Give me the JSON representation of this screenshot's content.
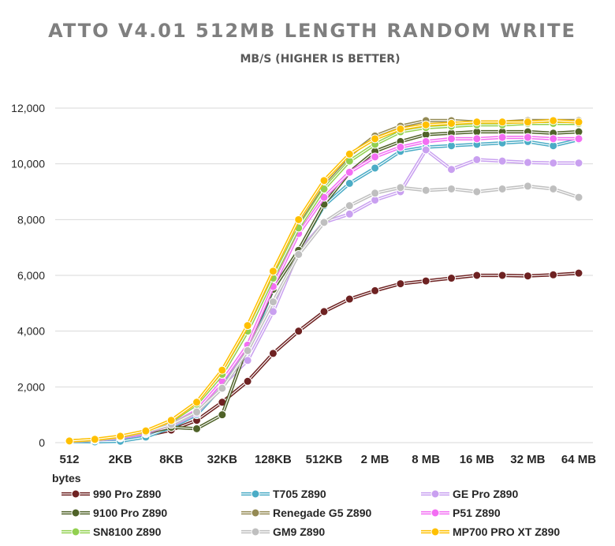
{
  "chart_data": {
    "type": "line",
    "title": "ATTO V4.01 512MB LENGTH RANDOM WRITE",
    "subtitle": "MB/S (HIGHER IS BETTER)",
    "xlabel": "bytes",
    "ylabel": "",
    "ylim": [
      0,
      12000
    ],
    "y_ticks": [
      "0",
      "2,000",
      "4,000",
      "6,000",
      "8,000",
      "10,000",
      "12,000"
    ],
    "y_tick_values": [
      0,
      2000,
      4000,
      6000,
      8000,
      10000,
      12000
    ],
    "x_tick_labels": [
      "512",
      "2KB",
      "8KB",
      "32KB",
      "128KB",
      "512KB",
      "2 MB",
      "8 MB",
      "16 MB",
      "32 MB",
      "64 MB"
    ],
    "x_tick_positions": [
      0,
      2,
      4,
      6,
      8,
      10,
      12,
      14,
      16,
      18,
      20
    ],
    "x": [
      0,
      1,
      2,
      3,
      4,
      5,
      6,
      7,
      8,
      9,
      10,
      11,
      12,
      13,
      14,
      15,
      16,
      17,
      18,
      19,
      20
    ],
    "grid": true,
    "legend_position": "bottom",
    "series": [
      {
        "name": "990 Pro Z890",
        "color": "#6e2222",
        "values": [
          40,
          80,
          150,
          250,
          450,
          800,
          1450,
          2200,
          3200,
          4000,
          4700,
          5150,
          5450,
          5700,
          5800,
          5900,
          6000,
          6000,
          5980,
          6020,
          6080
        ]
      },
      {
        "name": "T705 Z890",
        "color": "#4bacc6",
        "values": [
          40,
          30,
          50,
          200,
          550,
          1000,
          2000,
          3300,
          5500,
          6900,
          8500,
          9300,
          9850,
          10450,
          10600,
          10650,
          10700,
          10750,
          10800,
          10650,
          10870
        ]
      },
      {
        "name": "GE Pro Z890",
        "color": "#c9a0f0",
        "values": [
          50,
          90,
          170,
          320,
          600,
          1050,
          2050,
          2950,
          4700,
          6850,
          7900,
          8200,
          8700,
          9000,
          10500,
          9800,
          10150,
          10100,
          10050,
          10030,
          10030
        ]
      },
      {
        "name": "9100 Pro Z890",
        "color": "#4f6228",
        "values": [
          50,
          100,
          200,
          350,
          550,
          500,
          1000,
          3500,
          5500,
          6900,
          8550,
          9700,
          10450,
          10800,
          11050,
          11100,
          11150,
          11150,
          11150,
          11100,
          11150
        ]
      },
      {
        "name": "Renegade G5 Z890",
        "color": "#948a54",
        "values": [
          60,
          110,
          220,
          400,
          780,
          1400,
          2500,
          4100,
          6000,
          7900,
          9300,
          10300,
          11000,
          11350,
          11550,
          11550,
          11500,
          11500,
          11550,
          11550,
          11550
        ]
      },
      {
        "name": "P51 Z890",
        "color": "#f36ef3",
        "values": [
          50,
          100,
          190,
          350,
          650,
          1150,
          2200,
          3500,
          5600,
          7500,
          8800,
          9700,
          10250,
          10600,
          10800,
          10900,
          10900,
          10950,
          10950,
          10900,
          10900
        ]
      },
      {
        "name": "SN8100 Z890",
        "color": "#92d050",
        "values": [
          60,
          110,
          210,
          390,
          760,
          1380,
          2450,
          4000,
          5900,
          7700,
          9100,
          10100,
          10700,
          11150,
          11300,
          11350,
          11400,
          11400,
          11450,
          11450,
          11450
        ]
      },
      {
        "name": "GM9 Z890",
        "color": "#bfbfbf",
        "values": [
          50,
          100,
          200,
          380,
          650,
          1100,
          1950,
          3300,
          5050,
          6750,
          7900,
          8500,
          8950,
          9150,
          9050,
          9100,
          9000,
          9100,
          9200,
          9100,
          8800
        ]
      },
      {
        "name": "MP700 PRO XT Z890",
        "color": "#ffc000",
        "values": [
          60,
          120,
          230,
          420,
          800,
          1450,
          2600,
          4200,
          6150,
          8000,
          9400,
          10350,
          10900,
          11250,
          11400,
          11450,
          11500,
          11500,
          11500,
          11550,
          11500
        ]
      }
    ]
  }
}
